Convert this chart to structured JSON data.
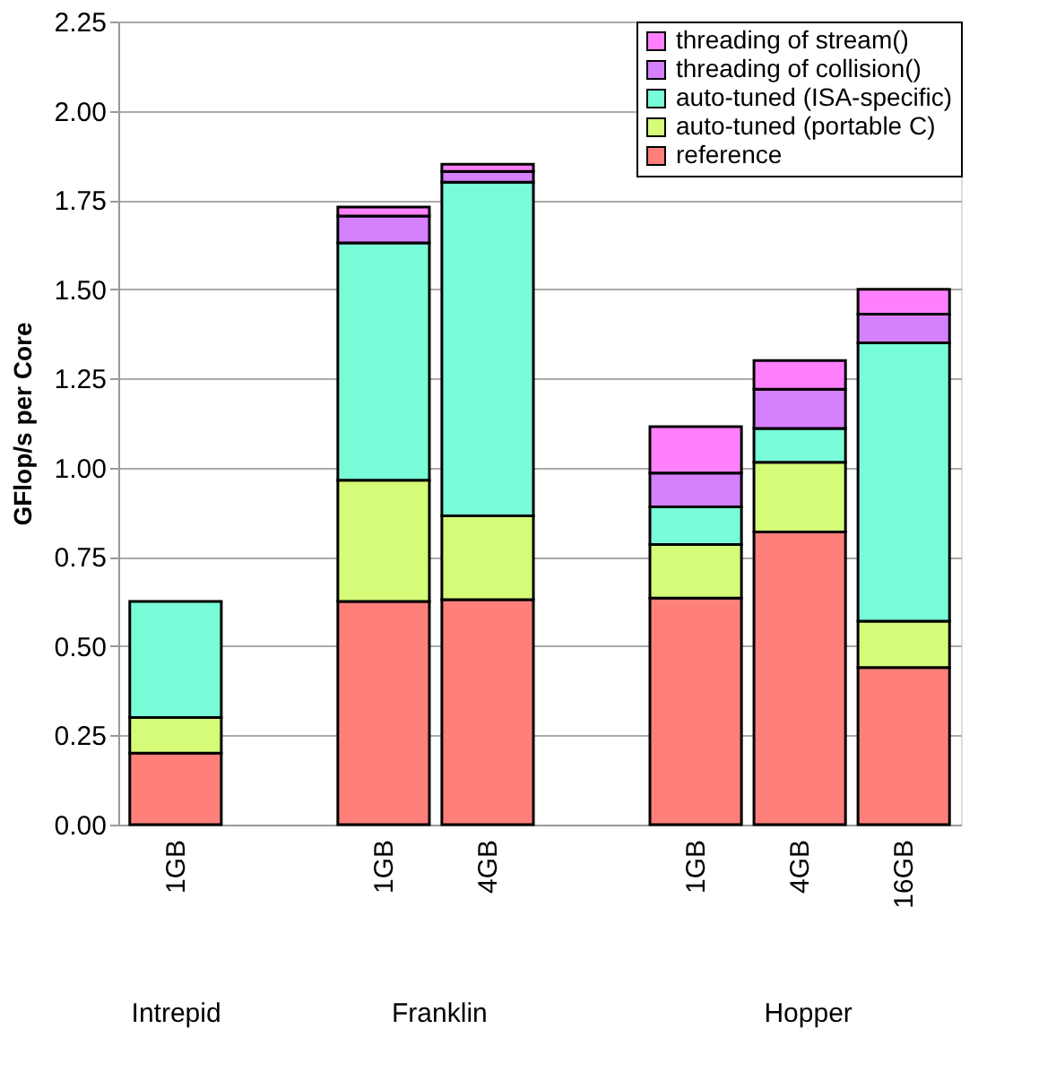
{
  "chart_data": {
    "type": "bar",
    "stacked": true,
    "ylabel": "GFlop/s per Core",
    "categories": [
      "1GB",
      null,
      "1GB",
      "4GB",
      null,
      "1GB",
      "4GB",
      "16GB"
    ],
    "annotations": [
      "Intrepid",
      "Franklin",
      "Hopper"
    ],
    "ylim": [
      0,
      2.25
    ],
    "yticks": [
      {
        "value": 0,
        "label": "0.00"
      },
      {
        "value": 0.25,
        "label": "0.25"
      },
      {
        "value": 0.5,
        "label": "0.50"
      },
      {
        "value": 0.75,
        "label": "0.75"
      },
      {
        "value": 1,
        "label": "1.00"
      },
      {
        "value": 1.25,
        "label": "1.25"
      },
      {
        "value": 1.5,
        "label": "1.50"
      },
      {
        "value": 1.75,
        "label": "1.75"
      },
      {
        "value": 2,
        "label": "2.00"
      },
      {
        "value": 2.25,
        "label": "2.25"
      }
    ],
    "grid": "y",
    "legend": "top right",
    "series": [
      {
        "name": "reference",
        "color": "#ff7f7a",
        "values": [
          0.2,
          null,
          0.625,
          0.63,
          null,
          0.635,
          0.82,
          0.44
        ]
      },
      {
        "name": "auto-tuned (portable C)",
        "color": "#d6fb78",
        "values": [
          0.1,
          null,
          0.34,
          0.235,
          null,
          0.15,
          0.195,
          0.13
        ]
      },
      {
        "name": "auto-tuned (ISA-specific)",
        "color": "#78fdd8",
        "values": [
          0.325,
          null,
          0.665,
          0.935,
          null,
          0.105,
          0.095,
          0.78
        ]
      },
      {
        "name": "threading of collision()",
        "color": "#d580fc",
        "values": [
          null,
          null,
          0.075,
          0.03,
          null,
          0.095,
          0.11,
          0.08
        ]
      },
      {
        "name": "threading of stream()",
        "color": "#ff80fc",
        "values": [
          null,
          null,
          0.025,
          0.02,
          null,
          0.13,
          0.08,
          0.07
        ]
      }
    ]
  }
}
